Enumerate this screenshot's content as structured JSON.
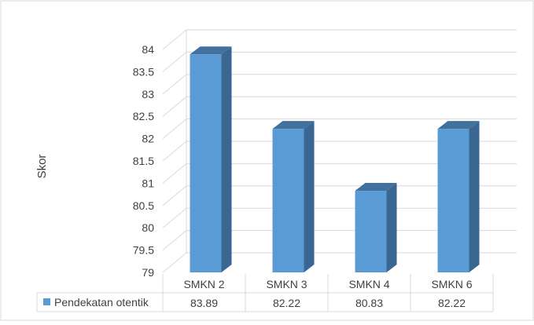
{
  "chart_data": {
    "type": "bar",
    "style": "3d-column",
    "ylabel": "Skor",
    "ylim": [
      79,
      84
    ],
    "ytick_step": 0.5,
    "yticks": [
      "79",
      "79.5",
      "80",
      "80.5",
      "81",
      "81.5",
      "82",
      "82.5",
      "83",
      "83.5",
      "84"
    ],
    "grid": true,
    "categories": [
      "SMKN 2",
      "SMKN 3",
      "SMKN 4",
      "SMKN 6"
    ],
    "series": [
      {
        "name": "Pendekatan otentik",
        "values": [
          83.89,
          82.22,
          80.83,
          82.22
        ]
      }
    ],
    "data_table": {
      "row_label": "Pendekatan otentik",
      "cells": [
        "83.89",
        "82.22",
        "80.83",
        "82.22"
      ]
    },
    "colors": {
      "bar_front": "#5b9bd5",
      "bar_side": "#3a6791",
      "bar_top": "#41719c",
      "grid": "#d9d9d9",
      "legend_key": "#5b9bd5"
    }
  }
}
